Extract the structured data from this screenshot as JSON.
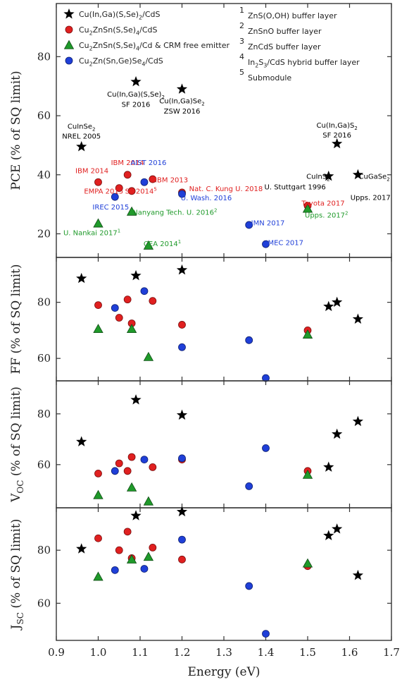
{
  "chart_data": {
    "type": "scatter",
    "xlabel": "Energy (eV)",
    "xlim": [
      0.9,
      1.7
    ],
    "xticks": [
      "0.9",
      "1.0",
      "1.1",
      "1.2",
      "1.3",
      "1.4",
      "1.5",
      "1.6",
      "1.7"
    ],
    "colors": {
      "CIGS": "#000000",
      "CZTS": "#e02020",
      "CRM": "#1f9a2a",
      "CZTGS": "#1f3fd8"
    },
    "legend": {
      "series": [
        {
          "key": "CIGS",
          "label": "Cu(In,Ga)(S,Se)₂/CdS"
        },
        {
          "key": "CZTS",
          "label": "Cu₂ZnSn(S,Se)₄/CdS"
        },
        {
          "key": "CRM",
          "label": "Cu₂ZnSn(S,Se)₄/Cd & CRM free emitter"
        },
        {
          "key": "CZTGS",
          "label": "Cu₂Zn(Sn,Ge)Se₄/CdS"
        }
      ],
      "notes": [
        {
          "num": "1",
          "text": "ZnS(O,OH) buffer layer"
        },
        {
          "num": "2",
          "text": "ZnSnO buffer layer"
        },
        {
          "num": "3",
          "text": "ZnCdS buffer layer"
        },
        {
          "num": "4",
          "text": "In₂S₃/CdS hybrid buffer layer"
        },
        {
          "num": "5",
          "text": "Submodule"
        }
      ]
    },
    "panels": [
      {
        "id": "pce",
        "ylabel": "PCE (% of SQ limit)",
        "ylim": [
          12,
          98
        ],
        "yticks": [
          20,
          40,
          60,
          80
        ],
        "series": [
          {
            "key": "CIGS",
            "points": [
              [
                0.96,
                49.5
              ],
              [
                1.09,
                71.5
              ],
              [
                1.2,
                69
              ],
              [
                1.55,
                39.5
              ],
              [
                1.57,
                50.5
              ],
              [
                1.62,
                40
              ]
            ]
          },
          {
            "key": "CZTS",
            "points": [
              [
                1.0,
                37.5
              ],
              [
                1.05,
                35.5
              ],
              [
                1.07,
                40
              ],
              [
                1.08,
                34.5
              ],
              [
                1.13,
                38.5
              ],
              [
                1.2,
                34
              ],
              [
                1.5,
                29.5
              ]
            ]
          },
          {
            "key": "CRM",
            "points": [
              [
                1.0,
                23.5
              ],
              [
                1.08,
                27.5
              ],
              [
                1.12,
                16
              ],
              [
                1.5,
                28.5
              ]
            ]
          },
          {
            "key": "CZTGS",
            "points": [
              [
                1.04,
                32.5
              ],
              [
                1.11,
                37.5
              ],
              [
                1.2,
                33.5
              ],
              [
                1.36,
                23
              ],
              [
                1.4,
                16.5
              ]
            ]
          }
        ],
        "annotations": [
          {
            "x": 0.96,
            "y": 55.6,
            "text": "CuInSe₂",
            "key": "CIGS"
          },
          {
            "x": 0.96,
            "y": 52.2,
            "text": "NREL 2005",
            "key": "CIGS"
          },
          {
            "x": 1.09,
            "y": 66.5,
            "text": "Cu(In,Ga)(S,Se)₂",
            "key": "CIGS"
          },
          {
            "x": 1.09,
            "y": 63.0,
            "text": "SF 2016",
            "key": "CIGS"
          },
          {
            "x": 1.2,
            "y": 64.2,
            "text": "Cu(In,Ga)Se₂",
            "key": "CIGS"
          },
          {
            "x": 1.2,
            "y": 60.7,
            "text": "ZSW 2016",
            "key": "CIGS"
          },
          {
            "x": 1.57,
            "y": 56.0,
            "text": "Cu(In,Ga)S₂",
            "key": "CIGS"
          },
          {
            "x": 1.57,
            "y": 52.6,
            "text": "SF 2016",
            "key": "CIGS"
          },
          {
            "x": 1.525,
            "y": 38.6,
            "text": "CuInS₂",
            "key": "CIGS"
          },
          {
            "x": 1.47,
            "y": 35.1,
            "text": "U. Stuttgart 1996",
            "key": "CIGS"
          },
          {
            "x": 1.659,
            "y": 38.6,
            "text": "CuGaSe₂",
            "key": "CIGS"
          },
          {
            "x": 1.65,
            "y": 31.5,
            "text": "Upps. 2017",
            "key": "CIGS"
          },
          {
            "x": 0.985,
            "y": 40.5,
            "text": "IBM 2014",
            "key": "CZTS"
          },
          {
            "x": 1.07,
            "y": 43.3,
            "text": "IBM 2014",
            "key": "CZTS"
          },
          {
            "x": 1.013,
            "y": 33.6,
            "text": "EMPA 2015",
            "key": "CZTS"
          },
          {
            "x": 1.102,
            "y": 33.6,
            "text": "SF 2014⁵",
            "key": "CZTS"
          },
          {
            "x": 1.175,
            "y": 37.5,
            "text": "IBM 2013",
            "key": "CZTS"
          },
          {
            "x": 1.305,
            "y": 34.5,
            "text": "Nat. C. Kung U. 2018",
            "key": "CZTS"
          },
          {
            "x": 1.537,
            "y": 29.5,
            "text": "Toyota 2017",
            "key": "CZTS"
          },
          {
            "x": 1.12,
            "y": 43.3,
            "text": "AIST 2016",
            "key": "CZTGS"
          },
          {
            "x": 1.258,
            "y": 31.4,
            "text": "U. Wash. 2016",
            "key": "CZTGS"
          },
          {
            "x": 1.03,
            "y": 28.2,
            "text": "IREC 2015",
            "key": "CZTGS"
          },
          {
            "x": 1.405,
            "y": 22.9,
            "text": "IMN 2017",
            "key": "CZTGS"
          },
          {
            "x": 1.445,
            "y": 16.2,
            "text": "IMEC 2017",
            "key": "CZTGS"
          },
          {
            "x": 1.183,
            "y": 26.4,
            "text": "Nanyang Tech. U. 2016²",
            "key": "CRM"
          },
          {
            "x": 0.985,
            "y": 19.5,
            "text": "U. Nankai 2017¹",
            "key": "CRM"
          },
          {
            "x": 1.153,
            "y": 15.8,
            "text": "CEA 2014¹",
            "key": "CRM"
          },
          {
            "x": 1.545,
            "y": 25.5,
            "text": "Upps. 2017²",
            "key": "CRM"
          }
        ]
      },
      {
        "id": "ff",
        "ylabel": "FF (% of SQ limit)",
        "ylim": [
          52,
          96
        ],
        "yticks": [
          60,
          80
        ],
        "series": [
          {
            "key": "CIGS",
            "points": [
              [
                0.96,
                88.5
              ],
              [
                1.09,
                89.5
              ],
              [
                1.2,
                91.5
              ],
              [
                1.55,
                78.5
              ],
              [
                1.57,
                80
              ],
              [
                1.62,
                74
              ]
            ]
          },
          {
            "key": "CZTS",
            "points": [
              [
                1.0,
                79
              ],
              [
                1.05,
                74.5
              ],
              [
                1.07,
                81
              ],
              [
                1.08,
                72.5
              ],
              [
                1.13,
                80.5
              ],
              [
                1.2,
                72
              ],
              [
                1.5,
                70
              ]
            ]
          },
          {
            "key": "CRM",
            "points": [
              [
                1.0,
                70.5
              ],
              [
                1.08,
                70.5
              ],
              [
                1.12,
                60.5
              ],
              [
                1.5,
                68.5
              ]
            ]
          },
          {
            "key": "CZTGS",
            "points": [
              [
                1.04,
                78
              ],
              [
                1.11,
                84
              ],
              [
                1.2,
                64
              ],
              [
                1.36,
                66.5
              ],
              [
                1.4,
                53
              ]
            ]
          }
        ]
      },
      {
        "id": "voc",
        "ylabel": "V_OC (% of SQ limit)",
        "ylim": [
          43,
          93
        ],
        "yticks": [
          60,
          80
        ],
        "series": [
          {
            "key": "CIGS",
            "points": [
              [
                0.96,
                69
              ],
              [
                1.09,
                85.5
              ],
              [
                1.2,
                79.5
              ],
              [
                1.55,
                59
              ],
              [
                1.57,
                72
              ],
              [
                1.62,
                77
              ]
            ]
          },
          {
            "key": "CZTS",
            "points": [
              [
                1.0,
                56.5
              ],
              [
                1.05,
                60.5
              ],
              [
                1.07,
                57.5
              ],
              [
                1.08,
                63
              ],
              [
                1.13,
                59
              ],
              [
                1.2,
                62
              ],
              [
                1.5,
                57.5
              ]
            ]
          },
          {
            "key": "CRM",
            "points": [
              [
                1.0,
                48
              ],
              [
                1.08,
                51
              ],
              [
                1.12,
                45.5
              ],
              [
                1.5,
                56
              ]
            ]
          },
          {
            "key": "CZTGS",
            "points": [
              [
                1.04,
                57.5
              ],
              [
                1.11,
                62
              ],
              [
                1.2,
                62.5
              ],
              [
                1.36,
                51.5
              ],
              [
                1.4,
                66.5
              ]
            ]
          }
        ]
      },
      {
        "id": "jsc",
        "ylabel": "J_SC (% of SQ limit)",
        "ylim": [
          46,
          96
        ],
        "yticks": [
          60,
          80
        ],
        "series": [
          {
            "key": "CIGS",
            "points": [
              [
                0.96,
                80.5
              ],
              [
                1.09,
                93
              ],
              [
                1.2,
                94.5
              ],
              [
                1.55,
                85.5
              ],
              [
                1.57,
                88
              ],
              [
                1.62,
                70.5
              ]
            ]
          },
          {
            "key": "CZTS",
            "points": [
              [
                1.0,
                84.5
              ],
              [
                1.05,
                80
              ],
              [
                1.07,
                87
              ],
              [
                1.08,
                77
              ],
              [
                1.13,
                81
              ],
              [
                1.2,
                76.5
              ],
              [
                1.5,
                74
              ]
            ]
          },
          {
            "key": "CRM",
            "points": [
              [
                1.0,
                70
              ],
              [
                1.08,
                76.5
              ],
              [
                1.12,
                77.5
              ],
              [
                1.5,
                75
              ]
            ]
          },
          {
            "key": "CZTGS",
            "points": [
              [
                1.04,
                72.5
              ],
              [
                1.11,
                73
              ],
              [
                1.2,
                84
              ],
              [
                1.36,
                66.5
              ],
              [
                1.4,
                48.5
              ]
            ]
          }
        ]
      }
    ]
  }
}
